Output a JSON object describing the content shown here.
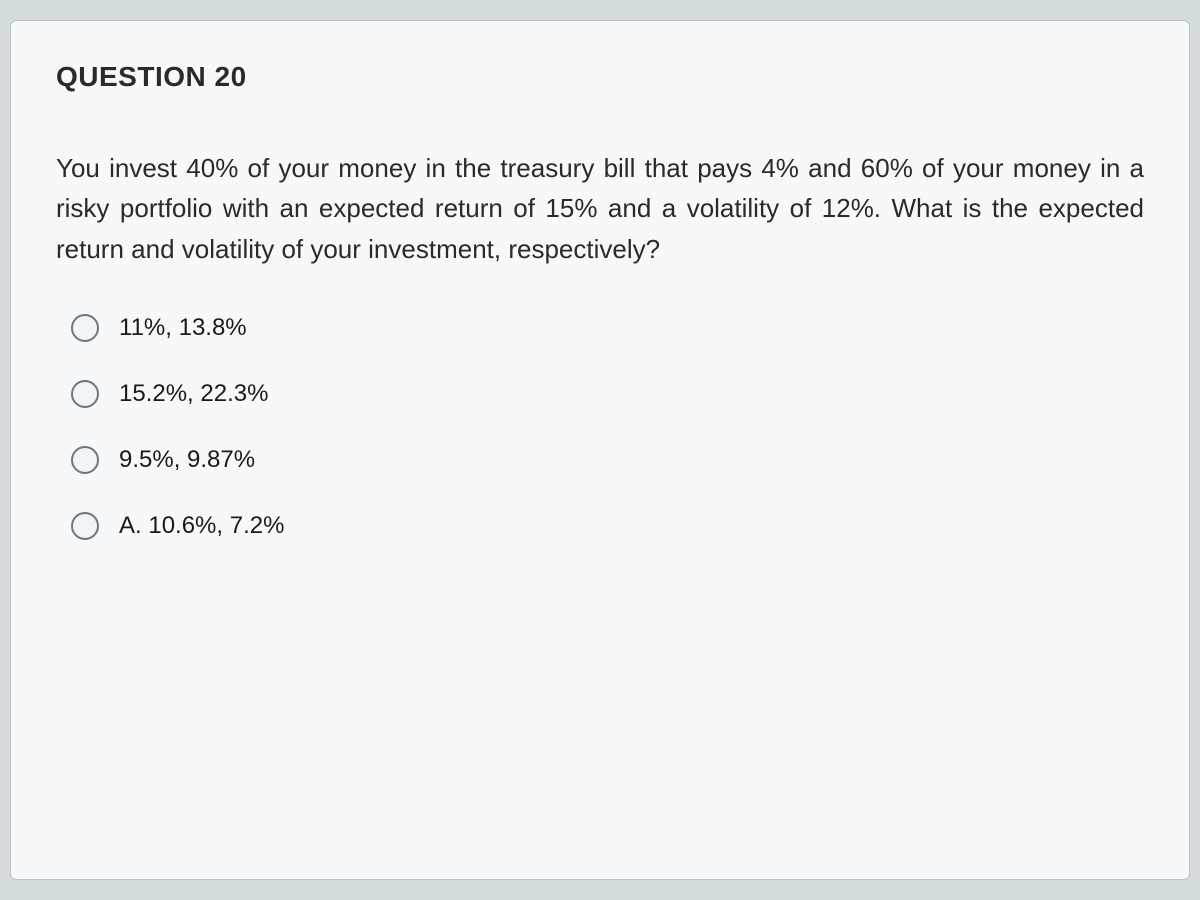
{
  "question": {
    "header": "QUESTION 20",
    "text": "You invest 40% of your money in the treasury bill that pays 4% and 60% of your money in a risky portfolio with an expected return of 15% and a volatility of 12%. What is the expected return and volatility of your investment, respectively?",
    "options": [
      {
        "label": "11%, 13.8%"
      },
      {
        "label": "15.2%, 22.3%"
      },
      {
        "label": "9.5%, 9.87%"
      },
      {
        "label": "A. 10.6%, 7.2%"
      }
    ]
  },
  "styling": {
    "card_background": "#f6f8f9",
    "card_border_color": "#b8c2c8",
    "card_border_radius": 6,
    "page_background": "#d4dce0",
    "header_fontsize": 28,
    "header_fontweight": 700,
    "body_fontsize": 26,
    "option_fontsize": 24,
    "text_color": "#2a2a2a",
    "radio_size": 28,
    "radio_border_color": "#6b7880",
    "radio_background": "#f2f4f5",
    "option_gap": 38
  }
}
